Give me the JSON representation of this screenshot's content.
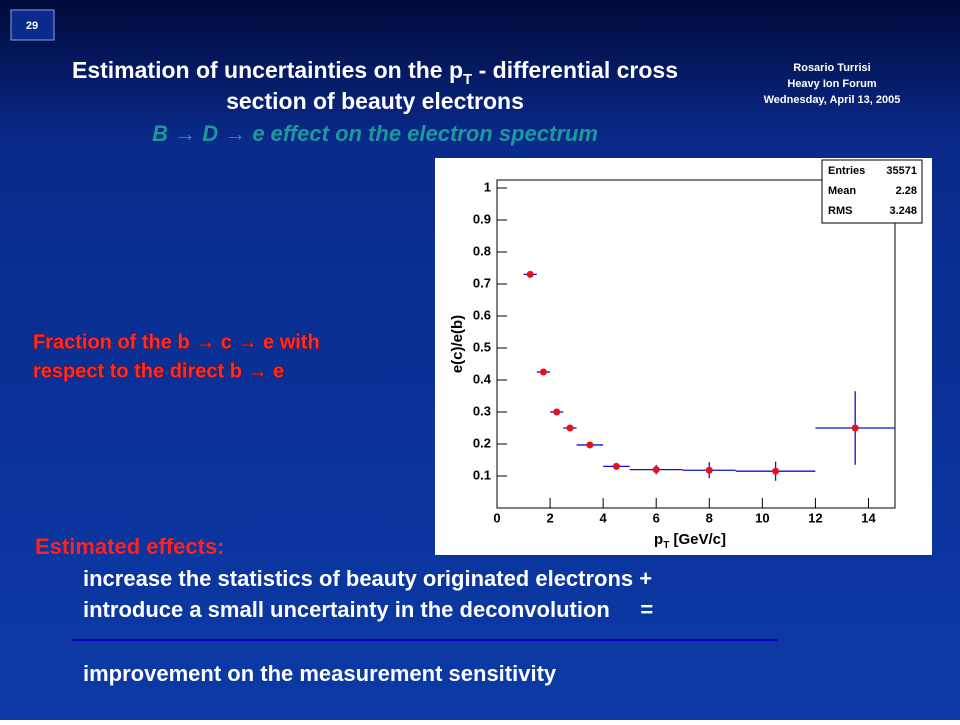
{
  "slide_number": "29",
  "title": {
    "pre": "Estimation of uncertainties on the p",
    "sub": "T",
    "post": " - differential cross",
    "line2": "section of beauty electrons"
  },
  "subtitle": "B → D → e effect on the electron spectrum",
  "author": [
    "Rosario Turrisi",
    "Heavy Ion Forum",
    "Wednesday, April 13, 2005"
  ],
  "annotation": [
    "Fraction of the b → c → e with",
    "respect to the direct b → e"
  ],
  "effects": {
    "heading": "Estimated effects:",
    "lines": [
      "increase the statistics of beauty originated electrons +",
      "introduce a small uncertainty in the deconvolution     ="
    ],
    "result": "improvement on the measurement sensitivity"
  },
  "chart_data": {
    "type": "scatter",
    "ylabel": "e(c)/e(b)",
    "xlabel": {
      "pre": "p",
      "sub": "T",
      "post": " [GeV/c]"
    },
    "stats": [
      {
        "name": "Entries",
        "value": 35571
      },
      {
        "name": "Mean",
        "value": 2.28
      },
      {
        "name": "RMS",
        "value": 3.248
      }
    ],
    "x": [
      1.25,
      1.75,
      2.25,
      2.75,
      3.5,
      4.5,
      6,
      8,
      10.5,
      13.5
    ],
    "x_err": [
      0.25,
      0.25,
      0.25,
      0.25,
      0.5,
      0.5,
      1,
      1,
      1.5,
      1.5
    ],
    "values": [
      0.73,
      0.425,
      0.3,
      0.25,
      0.197,
      0.13,
      0.12,
      0.118,
      0.115,
      0.25
    ],
    "errors": [
      0.01,
      0.008,
      0.008,
      0.008,
      0.006,
      0.01,
      0.015,
      0.025,
      0.03,
      0.115
    ],
    "color": "#e8101a",
    "err_color": "#1010d0",
    "xlim": [
      0,
      15
    ],
    "xticks": [
      0,
      2,
      4,
      6,
      8,
      10,
      12,
      14
    ],
    "ylim": [
      0,
      1.025
    ],
    "yticks": [
      0.1,
      0.2,
      0.3,
      0.4,
      0.5,
      0.6,
      0.7,
      0.8,
      0.9,
      1
    ]
  }
}
